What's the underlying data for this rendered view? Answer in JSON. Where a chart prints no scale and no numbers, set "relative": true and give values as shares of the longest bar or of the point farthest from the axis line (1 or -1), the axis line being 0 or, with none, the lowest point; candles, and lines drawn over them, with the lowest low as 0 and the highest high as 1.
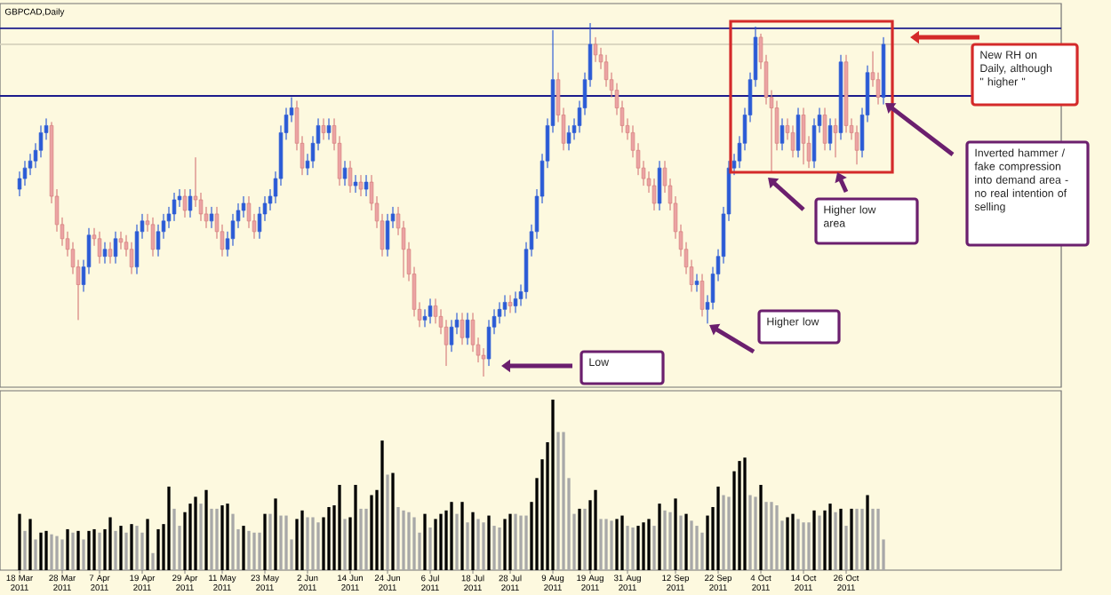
{
  "chart_data": [
    {
      "type": "candlestick",
      "title": "GBPCAD,Daily",
      "relative": true,
      "categories": [
        null,
        null,
        null,
        null,
        null,
        null,
        null,
        null,
        null,
        null,
        null,
        null,
        null,
        null,
        null,
        null,
        null,
        null,
        null,
        null,
        null,
        null,
        null,
        null,
        null,
        null,
        null,
        null,
        null,
        null,
        null,
        null,
        null,
        null,
        null,
        null,
        null,
        null,
        null,
        null,
        null,
        null,
        null,
        null,
        null,
        null,
        null,
        null,
        null,
        null,
        null,
        null,
        null,
        null,
        null,
        null,
        null,
        null,
        null,
        null,
        null,
        null,
        null,
        null,
        null,
        null,
        null,
        null,
        null,
        null,
        null,
        null,
        null,
        null,
        null,
        null,
        null,
        null,
        null,
        null,
        null,
        null,
        null,
        null,
        null,
        null,
        null,
        null,
        null,
        null,
        null,
        null,
        null,
        null,
        null,
        null,
        null,
        null,
        null,
        null,
        null,
        null,
        null,
        null,
        null,
        null,
        null,
        null,
        null,
        null,
        null,
        null,
        null,
        null,
        null,
        null,
        null,
        null,
        null,
        null,
        null,
        null,
        null,
        null,
        null,
        null,
        null,
        null,
        null,
        null,
        null,
        null,
        null,
        null,
        null,
        null,
        null,
        null,
        null,
        null,
        null,
        null,
        null,
        null,
        null,
        null,
        null,
        null,
        null,
        null,
        null,
        null,
        null,
        null,
        null,
        null,
        null,
        null,
        null,
        null,
        null,
        null,
        null
      ],
      "ohlc": [
        [
          0.53,
          0.58,
          0.51,
          0.56
        ],
        [
          0.56,
          0.61,
          0.54,
          0.59
        ],
        [
          0.59,
          0.63,
          0.57,
          0.61
        ],
        [
          0.61,
          0.66,
          0.59,
          0.64
        ],
        [
          0.64,
          0.71,
          0.62,
          0.69
        ],
        [
          0.69,
          0.73,
          0.67,
          0.71
        ],
        [
          0.71,
          0.72,
          0.49,
          0.51
        ],
        [
          0.51,
          0.53,
          0.41,
          0.43
        ],
        [
          0.43,
          0.45,
          0.37,
          0.39
        ],
        [
          0.39,
          0.41,
          0.34,
          0.36
        ],
        [
          0.36,
          0.38,
          0.29,
          0.31
        ],
        [
          0.31,
          0.33,
          0.16,
          0.26
        ],
        [
          0.26,
          0.33,
          0.24,
          0.31
        ],
        [
          0.31,
          0.42,
          0.29,
          0.4
        ],
        [
          0.4,
          0.42,
          0.37,
          0.39
        ],
        [
          0.39,
          0.41,
          0.32,
          0.34
        ],
        [
          0.34,
          0.38,
          0.32,
          0.36
        ],
        [
          0.36,
          0.38,
          0.32,
          0.34
        ],
        [
          0.34,
          0.41,
          0.32,
          0.39
        ],
        [
          0.39,
          0.41,
          0.36,
          0.38
        ],
        [
          0.38,
          0.4,
          0.34,
          0.36
        ],
        [
          0.36,
          0.38,
          0.29,
          0.31
        ],
        [
          0.31,
          0.43,
          0.29,
          0.41
        ],
        [
          0.41,
          0.46,
          0.39,
          0.44
        ],
        [
          0.44,
          0.46,
          0.41,
          0.43
        ],
        [
          0.43,
          0.45,
          0.34,
          0.36
        ],
        [
          0.36,
          0.43,
          0.34,
          0.41
        ],
        [
          0.41,
          0.46,
          0.39,
          0.44
        ],
        [
          0.44,
          0.48,
          0.42,
          0.46
        ],
        [
          0.46,
          0.52,
          0.44,
          0.5
        ],
        [
          0.5,
          0.53,
          0.48,
          0.51
        ],
        [
          0.51,
          0.53,
          0.45,
          0.47
        ],
        [
          0.47,
          0.53,
          0.45,
          0.51
        ],
        [
          0.51,
          0.62,
          0.48,
          0.5
        ],
        [
          0.5,
          0.52,
          0.44,
          0.46
        ],
        [
          0.46,
          0.48,
          0.42,
          0.44
        ],
        [
          0.44,
          0.48,
          0.42,
          0.46
        ],
        [
          0.46,
          0.48,
          0.39,
          0.41
        ],
        [
          0.41,
          0.43,
          0.34,
          0.36
        ],
        [
          0.36,
          0.41,
          0.34,
          0.39
        ],
        [
          0.39,
          0.46,
          0.37,
          0.44
        ],
        [
          0.44,
          0.49,
          0.42,
          0.47
        ],
        [
          0.47,
          0.51,
          0.45,
          0.49
        ],
        [
          0.49,
          0.51,
          0.42,
          0.44
        ],
        [
          0.44,
          0.46,
          0.39,
          0.41
        ],
        [
          0.41,
          0.48,
          0.39,
          0.46
        ],
        [
          0.46,
          0.51,
          0.44,
          0.49
        ],
        [
          0.49,
          0.53,
          0.47,
          0.51
        ],
        [
          0.51,
          0.58,
          0.49,
          0.56
        ],
        [
          0.56,
          0.71,
          0.54,
          0.69
        ],
        [
          0.69,
          0.76,
          0.67,
          0.74
        ],
        [
          0.74,
          0.79,
          0.72,
          0.76
        ],
        [
          0.76,
          0.78,
          0.64,
          0.66
        ],
        [
          0.66,
          0.68,
          0.57,
          0.59
        ],
        [
          0.59,
          0.63,
          0.57,
          0.61
        ],
        [
          0.61,
          0.68,
          0.59,
          0.66
        ],
        [
          0.66,
          0.73,
          0.64,
          0.71
        ],
        [
          0.71,
          0.73,
          0.67,
          0.69
        ],
        [
          0.69,
          0.73,
          0.67,
          0.71
        ],
        [
          0.71,
          0.73,
          0.64,
          0.66
        ],
        [
          0.66,
          0.68,
          0.54,
          0.56
        ],
        [
          0.56,
          0.61,
          0.54,
          0.59
        ],
        [
          0.59,
          0.61,
          0.52,
          0.54
        ],
        [
          0.54,
          0.57,
          0.52,
          0.55
        ],
        [
          0.55,
          0.57,
          0.51,
          0.53
        ],
        [
          0.53,
          0.57,
          0.51,
          0.55
        ],
        [
          0.55,
          0.57,
          0.47,
          0.49
        ],
        [
          0.49,
          0.51,
          0.42,
          0.44
        ],
        [
          0.44,
          0.46,
          0.34,
          0.36
        ],
        [
          0.36,
          0.46,
          0.34,
          0.44
        ],
        [
          0.44,
          0.48,
          0.42,
          0.46
        ],
        [
          0.46,
          0.48,
          0.4,
          0.42
        ],
        [
          0.42,
          0.44,
          0.28,
          0.36
        ],
        [
          0.36,
          0.38,
          0.27,
          0.29
        ],
        [
          0.29,
          0.31,
          0.17,
          0.19
        ],
        [
          0.19,
          0.21,
          0.14,
          0.16
        ],
        [
          0.16,
          0.19,
          0.14,
          0.17
        ],
        [
          0.17,
          0.22,
          0.15,
          0.2
        ],
        [
          0.2,
          0.22,
          0.15,
          0.17
        ],
        [
          0.17,
          0.19,
          0.12,
          0.14
        ],
        [
          0.14,
          0.16,
          0.03,
          0.09
        ],
        [
          0.09,
          0.16,
          0.07,
          0.14
        ],
        [
          0.14,
          0.18,
          0.12,
          0.16
        ],
        [
          0.16,
          0.18,
          0.09,
          0.11
        ],
        [
          0.11,
          0.18,
          0.09,
          0.16
        ],
        [
          0.16,
          0.18,
          0.07,
          0.09
        ],
        [
          0.09,
          0.11,
          0.04,
          0.06
        ],
        [
          0.06,
          0.08,
          0,
          0.05
        ],
        [
          0.05,
          0.16,
          0.03,
          0.14
        ],
        [
          0.14,
          0.19,
          0.12,
          0.17
        ],
        [
          0.17,
          0.21,
          0.15,
          0.19
        ],
        [
          0.19,
          0.23,
          0.17,
          0.21
        ],
        [
          0.21,
          0.23,
          0.18,
          0.2
        ],
        [
          0.2,
          0.24,
          0.18,
          0.22
        ],
        [
          0.22,
          0.26,
          0.2,
          0.24
        ],
        [
          0.24,
          0.38,
          0.22,
          0.36
        ],
        [
          0.36,
          0.43,
          0.34,
          0.41
        ],
        [
          0.41,
          0.53,
          0.39,
          0.51
        ],
        [
          0.51,
          0.63,
          0.49,
          0.61
        ],
        [
          0.61,
          0.73,
          0.59,
          0.71
        ],
        [
          0.71,
          0.98,
          0.69,
          0.84
        ],
        [
          0.84,
          0.86,
          0.72,
          0.74
        ],
        [
          0.74,
          0.76,
          0.64,
          0.66
        ],
        [
          0.66,
          0.71,
          0.64,
          0.69
        ],
        [
          0.69,
          0.73,
          0.67,
          0.71
        ],
        [
          0.71,
          0.78,
          0.69,
          0.76
        ],
        [
          0.76,
          0.86,
          0.74,
          0.84
        ],
        [
          0.84,
          1,
          0.82,
          0.94
        ],
        [
          0.94,
          0.96,
          0.89,
          0.91
        ],
        [
          0.91,
          0.93,
          0.87,
          0.89
        ],
        [
          0.89,
          0.91,
          0.82,
          0.84
        ],
        [
          0.84,
          0.86,
          0.79,
          0.81
        ],
        [
          0.81,
          0.83,
          0.74,
          0.76
        ],
        [
          0.76,
          0.78,
          0.69,
          0.71
        ],
        [
          0.71,
          0.73,
          0.67,
          0.69
        ],
        [
          0.69,
          0.71,
          0.62,
          0.64
        ],
        [
          0.64,
          0.66,
          0.57,
          0.59
        ],
        [
          0.59,
          0.61,
          0.54,
          0.56
        ],
        [
          0.56,
          0.58,
          0.52,
          0.54
        ],
        [
          0.54,
          0.56,
          0.47,
          0.49
        ],
        [
          0.49,
          0.61,
          0.47,
          0.59
        ],
        [
          0.59,
          0.61,
          0.52,
          0.54
        ],
        [
          0.54,
          0.56,
          0.47,
          0.49
        ],
        [
          0.49,
          0.51,
          0.39,
          0.41
        ],
        [
          0.41,
          0.43,
          0.34,
          0.36
        ],
        [
          0.36,
          0.38,
          0.29,
          0.31
        ],
        [
          0.31,
          0.33,
          0.24,
          0.26
        ],
        [
          0.26,
          0.29,
          0.24,
          0.27
        ],
        [
          0.27,
          0.29,
          0.17,
          0.19
        ],
        [
          0.19,
          0.23,
          0.15,
          0.21
        ],
        [
          0.21,
          0.31,
          0.19,
          0.29
        ],
        [
          0.29,
          0.36,
          0.27,
          0.34
        ],
        [
          0.34,
          0.48,
          0.32,
          0.46
        ],
        [
          0.46,
          0.61,
          0.44,
          0.59
        ],
        [
          0.59,
          0.63,
          0.57,
          0.61
        ],
        [
          0.61,
          0.68,
          0.59,
          0.66
        ],
        [
          0.66,
          0.76,
          0.64,
          0.74
        ],
        [
          0.74,
          0.86,
          0.72,
          0.84
        ],
        [
          0.84,
          0.99,
          0.82,
          0.96
        ],
        [
          0.96,
          0.97,
          0.87,
          0.89
        ],
        [
          0.89,
          0.91,
          0.77,
          0.79
        ],
        [
          0.79,
          0.81,
          0.58,
          0.76
        ],
        [
          0.76,
          0.78,
          0.64,
          0.66
        ],
        [
          0.66,
          0.73,
          0.64,
          0.71
        ],
        [
          0.71,
          0.73,
          0.67,
          0.69
        ],
        [
          0.69,
          0.71,
          0.62,
          0.64
        ],
        [
          0.64,
          0.76,
          0.62,
          0.74
        ],
        [
          0.74,
          0.76,
          0.6,
          0.66
        ],
        [
          0.66,
          0.68,
          0.59,
          0.61
        ],
        [
          0.61,
          0.73,
          0.59,
          0.71
        ],
        [
          0.71,
          0.76,
          0.69,
          0.74
        ],
        [
          0.74,
          0.76,
          0.64,
          0.66
        ],
        [
          0.66,
          0.73,
          0.64,
          0.71
        ],
        [
          0.71,
          0.73,
          0.62,
          0.69
        ],
        [
          0.69,
          0.91,
          0.67,
          0.89
        ],
        [
          0.89,
          0.91,
          0.69,
          0.71
        ],
        [
          0.71,
          0.73,
          0.67,
          0.69
        ],
        [
          0.69,
          0.71,
          0.6,
          0.64
        ],
        [
          0.64,
          0.76,
          0.62,
          0.74
        ],
        [
          0.74,
          0.88,
          0.72,
          0.86
        ],
        [
          0.86,
          0.92,
          0.82,
          0.84
        ],
        [
          0.84,
          0.86,
          0.77,
          0.79
        ],
        [
          0.79,
          0.96,
          0.77,
          0.94
        ]
      ],
      "ref_lines": [
        {
          "axis": "y",
          "value": 0.985,
          "color": "#1c1c8c"
        },
        {
          "axis": "y",
          "value": 0.94,
          "color": "#d6d2bc"
        },
        {
          "axis": "y",
          "value": 0.794,
          "color": "#1c1c8c"
        }
      ],
      "annotations": [
        "New RH on Daily, although \" higher \"",
        "Inverted hammer / fake compression into demand area - no real intention of selling",
        "Higher low area",
        "Higher low",
        "Low"
      ]
    },
    {
      "type": "bar",
      "relative": true,
      "categories": [
        "18 Mar 2011",
        null,
        null,
        null,
        null,
        null,
        null,
        null,
        "28 Mar 2011",
        null,
        null,
        null,
        null,
        null,
        null,
        "7 Apr 2011",
        null,
        null,
        null,
        null,
        null,
        null,
        null,
        "19 Apr 2011",
        null,
        null,
        null,
        null,
        null,
        null,
        null,
        "29 Apr 2011",
        null,
        null,
        null,
        null,
        null,
        null,
        "11 May 2011",
        null,
        null,
        null,
        null,
        null,
        null,
        null,
        "23 May 2011",
        null,
        null,
        null,
        null,
        null,
        null,
        null,
        "2 Jun 2011",
        null,
        null,
        null,
        null,
        null,
        null,
        null,
        "14 Jun 2011",
        null,
        null,
        null,
        null,
        null,
        null,
        "24 Jun 2011",
        null,
        null,
        null,
        null,
        null,
        null,
        null,
        "6 Jul 2011",
        null,
        null,
        null,
        null,
        null,
        null,
        null,
        "18 Jul 2011",
        null,
        null,
        null,
        null,
        null,
        null,
        "28 Jul 2011",
        null,
        null,
        null,
        null,
        null,
        null,
        null,
        "9 Aug 2011",
        null,
        null,
        null,
        null,
        null,
        null,
        "19 Aug 2011",
        null,
        null,
        null,
        null,
        null,
        null,
        "31 Aug 2011",
        null,
        null,
        null,
        null,
        null,
        null,
        null,
        null,
        "12 Sep 2011",
        null,
        null,
        null,
        null,
        null,
        null,
        null,
        "22 Sep 2011",
        null,
        null,
        null,
        null,
        null,
        null,
        null,
        "4 Oct 2011",
        null,
        null,
        null,
        null,
        null,
        null,
        null,
        "14 Oct 2011",
        null,
        null,
        null,
        null,
        null,
        null,
        null,
        "26 Oct 2011",
        null,
        null,
        null,
        null,
        null,
        null,
        null
      ],
      "values": [
        0.33,
        0.23,
        0.3,
        0.18,
        0.22,
        0.23,
        0.21,
        0.2,
        0.18,
        0.24,
        0.22,
        0.23,
        0.18,
        0.23,
        0.24,
        0.22,
        0.24,
        0.31,
        0.23,
        0.26,
        0.22,
        0.27,
        0.26,
        0.22,
        0.3,
        0.1,
        0.24,
        0.27,
        0.49,
        0.36,
        0.26,
        0.34,
        0.39,
        0.43,
        0.39,
        0.47,
        0.36,
        0.36,
        0.38,
        0.39,
        0.33,
        0.24,
        0.26,
        0.23,
        0.22,
        0.22,
        0.33,
        0.33,
        0.42,
        0.32,
        0.32,
        0.18,
        0.3,
        0.35,
        0.31,
        0.31,
        0.28,
        0.31,
        0.37,
        0.38,
        0.5,
        0.3,
        0.31,
        0.5,
        0.36,
        0.36,
        0.44,
        0.47,
        0.76,
        0.56,
        0.57,
        0.37,
        0.35,
        0.34,
        0.31,
        0.22,
        0.33,
        0.25,
        0.3,
        0.33,
        0.35,
        0.4,
        0.33,
        0.4,
        0.28,
        0.34,
        0.3,
        0.28,
        0.32,
        0.26,
        0.25,
        0.3,
        0.33,
        0.33,
        0.32,
        0.32,
        0.4,
        0.54,
        0.65,
        0.75,
        1,
        0.81,
        0.81,
        0.54,
        0.33,
        0.36,
        0.36,
        0.41,
        0.47,
        0.3,
        0.3,
        0.29,
        0.3,
        0.32,
        0.26,
        0.25,
        0.26,
        0.28,
        0.3,
        0.26,
        0.39,
        0.35,
        0.34,
        0.42,
        0.32,
        0.33,
        0.29,
        0.26,
        0.22,
        0.32,
        0.37,
        0.49,
        0.44,
        0.43,
        0.58,
        0.64,
        0.66,
        0.44,
        0.43,
        0.5,
        0.4,
        0.4,
        0.38,
        0.29,
        0.31,
        0.33,
        0.3,
        0.28,
        0.28,
        0.35,
        0.32,
        0.35,
        0.39,
        0.34,
        0.36,
        0.26,
        0.36,
        0.36,
        0.36,
        0.44,
        0.36,
        0.36,
        0.18
      ],
      "colors": [
        "#000000",
        "#a8a8a8",
        "#000000",
        "#a8a8a8",
        "#000000",
        "#000000",
        "#a8a8a8",
        "#a8a8a8",
        "#a8a8a8",
        "#000000",
        "#a8a8a8",
        "#000000",
        "#a8a8a8",
        "#000000",
        "#000000",
        "#a8a8a8",
        "#000000",
        "#000000",
        "#a8a8a8",
        "#000000",
        "#a8a8a8",
        "#000000",
        "#a8a8a8",
        "#a8a8a8",
        "#000000",
        "#a8a8a8",
        "#000000",
        "#000000",
        "#000000",
        "#a8a8a8",
        "#a8a8a8",
        "#000000",
        "#000000",
        "#000000",
        "#a8a8a8",
        "#000000",
        "#a8a8a8",
        "#a8a8a8",
        "#000000",
        "#000000",
        "#a8a8a8",
        "#a8a8a8",
        "#000000",
        "#a8a8a8",
        "#a8a8a8",
        "#a8a8a8",
        "#000000",
        "#a8a8a8",
        "#000000",
        "#a8a8a8",
        "#a8a8a8",
        "#a8a8a8",
        "#000000",
        "#000000",
        "#a8a8a8",
        "#a8a8a8",
        "#a8a8a8",
        "#000000",
        "#000000",
        "#000000",
        "#000000",
        "#a8a8a8",
        "#000000",
        "#000000",
        "#a8a8a8",
        "#a8a8a8",
        "#000000",
        "#000000",
        "#000000",
        "#a8a8a8",
        "#000000",
        "#a8a8a8",
        "#a8a8a8",
        "#a8a8a8",
        "#a8a8a8",
        "#a8a8a8",
        "#000000",
        "#a8a8a8",
        "#000000",
        "#000000",
        "#000000",
        "#000000",
        "#a8a8a8",
        "#000000",
        "#a8a8a8",
        "#000000",
        "#a8a8a8",
        "#a8a8a8",
        "#000000",
        "#a8a8a8",
        "#a8a8a8",
        "#000000",
        "#000000",
        "#a8a8a8",
        "#a8a8a8",
        "#a8a8a8",
        "#000000",
        "#000000",
        "#000000",
        "#000000",
        "#000000",
        "#a8a8a8",
        "#a8a8a8",
        "#a8a8a8",
        "#a8a8a8",
        "#000000",
        "#a8a8a8",
        "#000000",
        "#000000",
        "#a8a8a8",
        "#a8a8a8",
        "#a8a8a8",
        "#000000",
        "#000000",
        "#a8a8a8",
        "#a8a8a8",
        "#000000",
        "#000000",
        "#000000",
        "#a8a8a8",
        "#000000",
        "#a8a8a8",
        "#a8a8a8",
        "#000000",
        "#a8a8a8",
        "#000000",
        "#a8a8a8",
        "#a8a8a8",
        "#a8a8a8",
        "#000000",
        "#000000",
        "#000000",
        "#a8a8a8",
        "#a8a8a8",
        "#000000",
        "#000000",
        "#000000",
        "#a8a8a8",
        "#a8a8a8",
        "#000000",
        "#a8a8a8",
        "#a8a8a8",
        "#a8a8a8",
        "#a8a8a8",
        "#000000",
        "#000000",
        "#a8a8a8",
        "#a8a8a8",
        "#a8a8a8",
        "#000000",
        "#a8a8a8",
        "#000000",
        "#000000",
        "#a8a8a8",
        "#000000",
        "#a8a8a8",
        "#000000",
        "#a8a8a8",
        "#a8a8a8",
        "#000000",
        "#a8a8a8",
        "#a8a8a8",
        "#a8a8a8"
      ]
    }
  ]
}
